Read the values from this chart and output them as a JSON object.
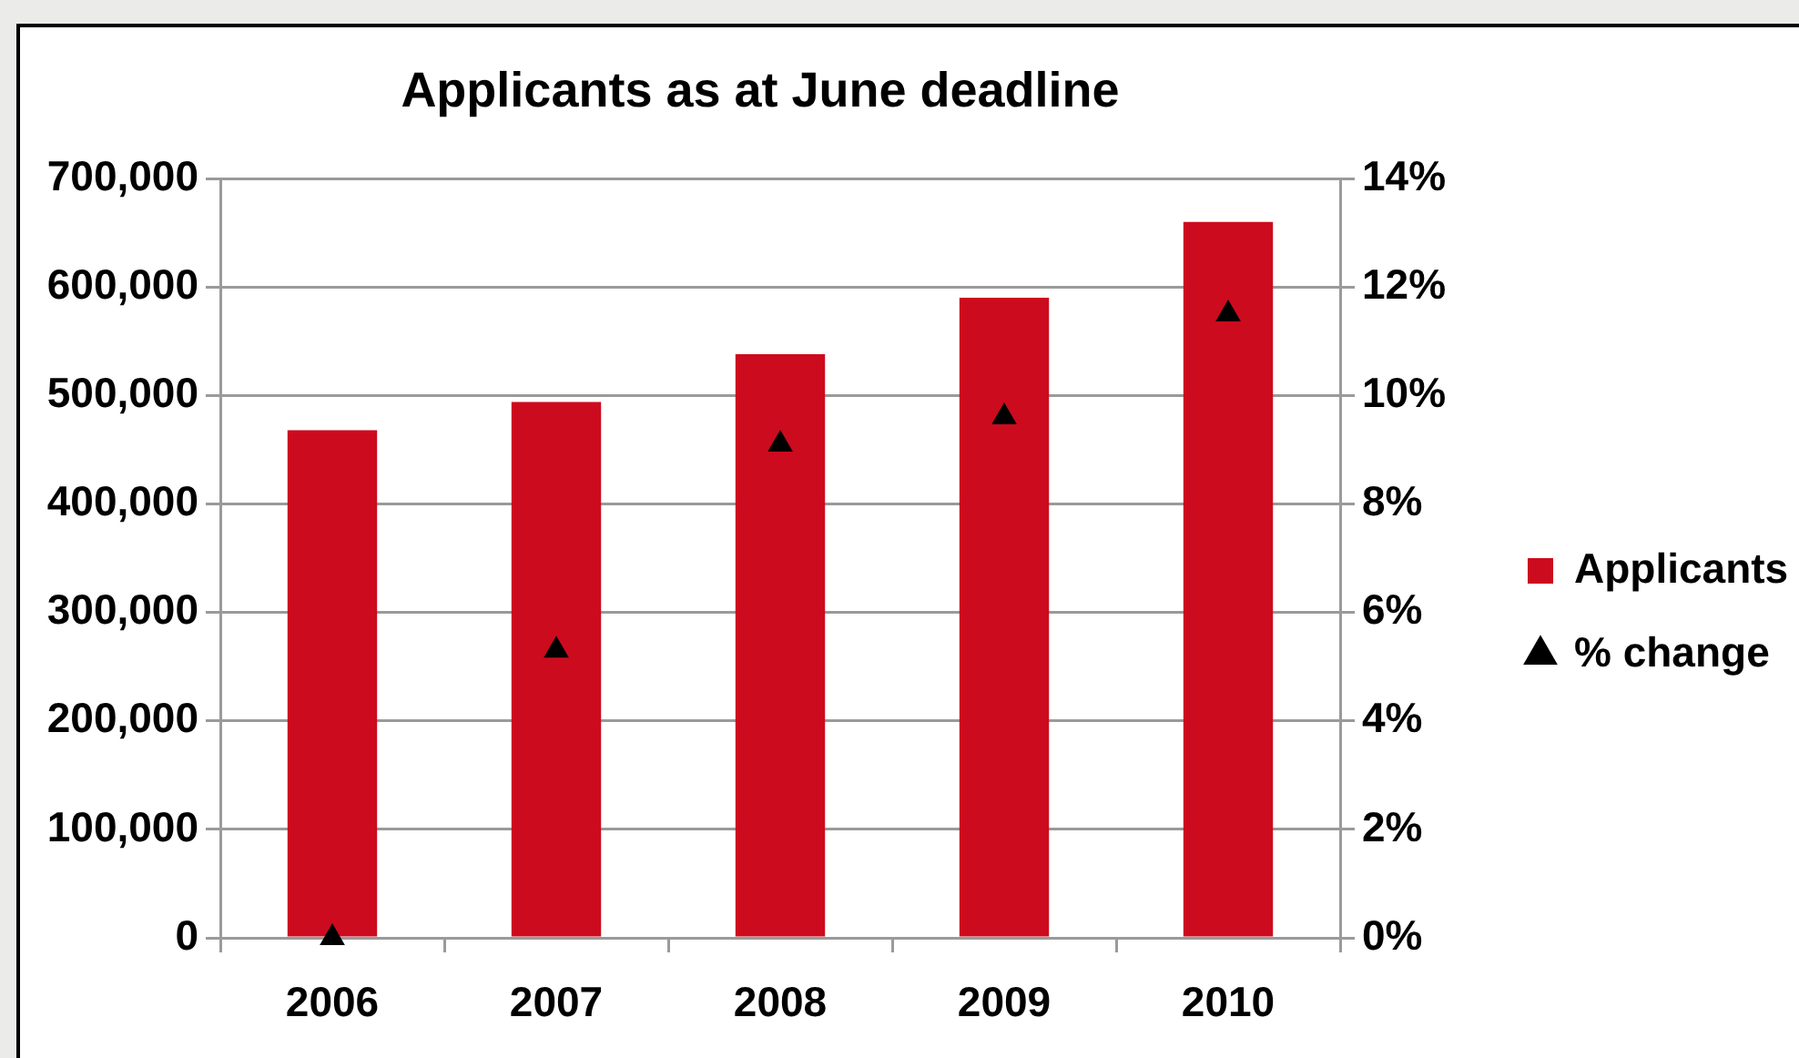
{
  "chart_data": {
    "type": "bar",
    "title": "Applicants as at June deadline",
    "categories": [
      "2006",
      "2007",
      "2008",
      "2009",
      "2010"
    ],
    "series": [
      {
        "name": "Applicants",
        "color": "#cd0b1e",
        "values": [
          468000,
          494000,
          538000,
          590000,
          660000
        ]
      },
      {
        "name": "% change",
        "type": "scatter",
        "axis": "y2",
        "marker": "triangle",
        "color": "#000000",
        "values": [
          0,
          5.3,
          9.1,
          9.6,
          11.5
        ]
      }
    ],
    "ylim": [
      0,
      700000
    ],
    "yticks": [
      0,
      {
        "value": 100000,
        "label": "100,000"
      },
      {
        "value": 200000,
        "label": "200,000"
      },
      {
        "value": 300000,
        "label": "300,000"
      },
      {
        "value": 400000,
        "label": "400,000"
      },
      {
        "value": 500000,
        "label": "500,000"
      },
      {
        "value": 600000,
        "label": "600,000"
      },
      {
        "value": 700000,
        "label": "700,000"
      }
    ],
    "y2lim": [
      0,
      14
    ],
    "y2ticks": [
      {
        "value": 0,
        "label": "0%"
      },
      {
        "value": 2,
        "label": "2%"
      },
      {
        "value": 4,
        "label": "4%"
      },
      {
        "value": 6,
        "label": "6%"
      },
      {
        "value": 8,
        "label": "8%"
      },
      {
        "value": 10,
        "label": "10%"
      },
      {
        "value": 12,
        "label": "12%"
      },
      {
        "value": 14,
        "label": "14%"
      }
    ],
    "grid": "y",
    "legend": "right"
  }
}
